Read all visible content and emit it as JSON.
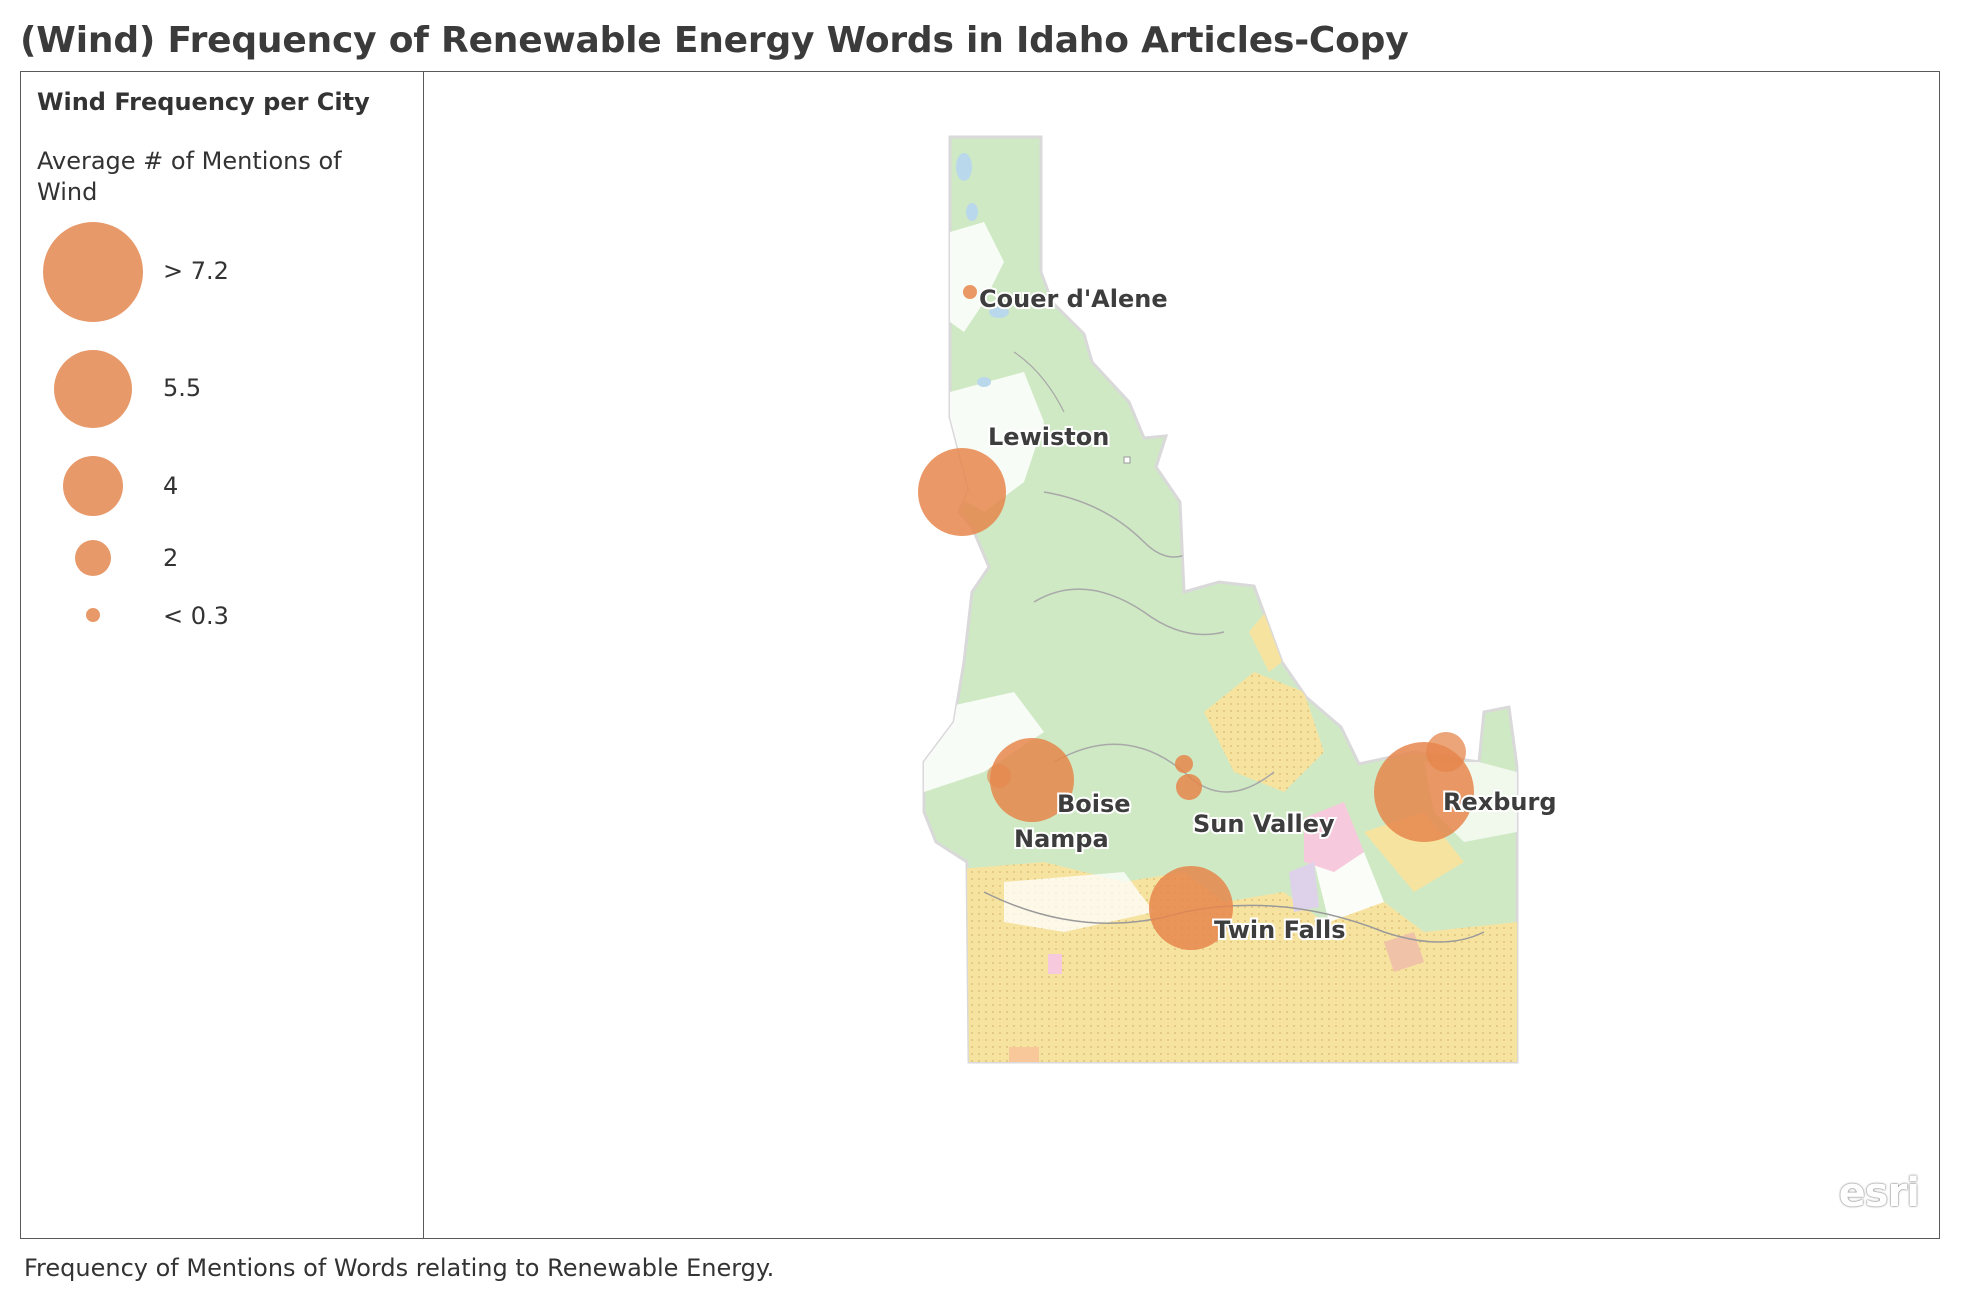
{
  "title": "(Wind) Frequency of Renewable Energy Words in Idaho Articles-Copy",
  "legend": {
    "heading": "Wind Frequency per City",
    "subheading": "Average # of Mentions of Wind",
    "items": [
      {
        "label": "> 7.2"
      },
      {
        "label": "5.5"
      },
      {
        "label": "4"
      },
      {
        "label": "2"
      },
      {
        "label": "< 0.3"
      }
    ],
    "symbol_color": "#e8996a"
  },
  "map": {
    "cities": [
      {
        "name": "Couer d'Alene"
      },
      {
        "name": "Lewiston"
      },
      {
        "name": "Boise"
      },
      {
        "name": "Nampa"
      },
      {
        "name": "Sun Valley"
      },
      {
        "name": "Rexburg"
      },
      {
        "name": "Twin  Falls"
      }
    ],
    "attribution": "esri",
    "colors": {
      "forest": "#cfe9c4",
      "rangeland": "#f7e3a0",
      "water": "#b9d8ec",
      "wilderness": "#f7c9dc",
      "symbol": "#e6864c"
    }
  },
  "footer": "Frequency of Mentions of Words relating to Renewable Energy."
}
